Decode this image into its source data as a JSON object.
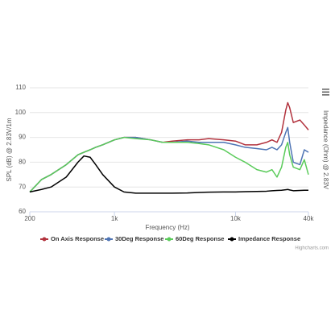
{
  "chart_data": {
    "type": "line",
    "x_label": "Frequency (Hz)",
    "y_label": "SPL (dB) @ 2.83V/1m",
    "y2_label": "Impedance (Ohm) @ 2.83V",
    "credit": "Highcharts.com",
    "x_scale": "log",
    "xlim": [
      200,
      40000
    ],
    "xticks": [
      200,
      {
        "value": 1000,
        "label": "1k"
      },
      {
        "value": 10000,
        "label": "10k"
      },
      {
        "value": 40000,
        "label": "40k"
      }
    ],
    "ylim": [
      60,
      110
    ],
    "yticks": [
      60,
      70,
      80,
      90,
      100,
      110
    ],
    "y2lim": [
      0,
      50
    ],
    "grid": true,
    "legend": "bottom",
    "x": [
      200,
      250,
      300,
      400,
      500,
      560,
      630,
      700,
      800,
      1000,
      1200,
      1500,
      2000,
      2500,
      3000,
      4000,
      5000,
      6000,
      8000,
      10000,
      12000,
      15000,
      18000,
      20000,
      22000,
      24000,
      26000,
      27000,
      28000,
      30000,
      34000,
      37000,
      40000
    ],
    "series": [
      {
        "name": "On Axis Response",
        "color": "#b2323d",
        "values": [
          68,
          73,
          75,
          79,
          83,
          84,
          85,
          86,
          87,
          89,
          90,
          90,
          89,
          88,
          88.5,
          89,
          89,
          89.5,
          89,
          88.5,
          87,
          87,
          88,
          89,
          88,
          92,
          101,
          104,
          102,
          96,
          97,
          95,
          93
        ]
      },
      {
        "name": "30Deg Response",
        "color": "#4e74b4",
        "values": [
          68,
          73,
          75,
          79,
          83,
          84,
          85,
          86,
          87,
          89,
          90,
          90,
          89,
          88,
          88,
          88.5,
          88,
          88,
          88,
          87,
          86,
          85.5,
          85,
          86,
          85,
          87,
          92,
          94,
          88,
          80,
          79,
          85,
          84
        ]
      },
      {
        "name": "60Deg Response",
        "color": "#5acb5a",
        "values": [
          68,
          73,
          75,
          79,
          83,
          84,
          85,
          86,
          87,
          89,
          90,
          89.5,
          89,
          88,
          88,
          88,
          87.5,
          87,
          85,
          82,
          80,
          77,
          76,
          77,
          74,
          78,
          86,
          88,
          83,
          78,
          77,
          81,
          75
        ]
      },
      {
        "name": "Impedance Response",
        "color": "#000000",
        "axis": "y2",
        "values": [
          8,
          9,
          10,
          14,
          20,
          22.5,
          22,
          19,
          15,
          10,
          8,
          7.5,
          7.5,
          7.5,
          7.5,
          7.6,
          7.8,
          7.9,
          8,
          8,
          8.1,
          8.2,
          8.3,
          8.5,
          8.6,
          8.7,
          8.9,
          9,
          8.8,
          8.5,
          8.6,
          8.7,
          8.7
        ]
      }
    ]
  }
}
